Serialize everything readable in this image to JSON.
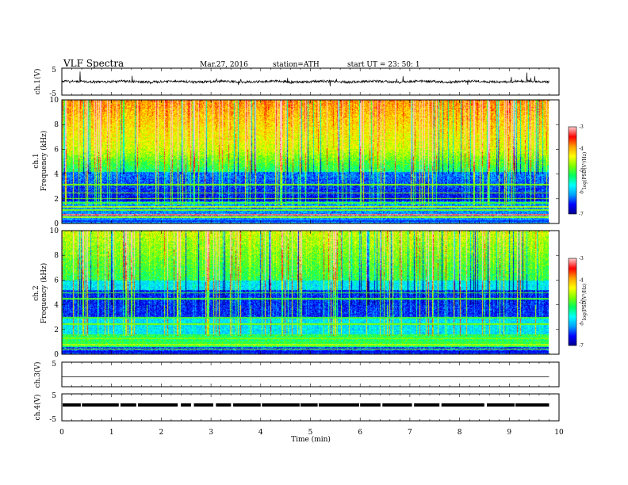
{
  "header": {
    "title": "VLF  Spectra",
    "date": "Mar.27, 2016",
    "station": "station=ATH",
    "start": "start  UT  =   23: 50: 1"
  },
  "chart_data": [
    {
      "type": "line",
      "panel": "ch1-waveform",
      "ylabel": "ch.1(V)",
      "ylim": [
        -5,
        5
      ],
      "yticks": [
        "5",
        "-5"
      ],
      "x_range_min": [
        0,
        9.8
      ],
      "trace_mean": 0,
      "trace_amplitude": 1
    },
    {
      "type": "heatmap",
      "panel": "ch1-spectrogram",
      "ylabel_channel": "ch.1",
      "ylabel": "Frequency  (kHz)",
      "ylim": [
        0,
        10
      ],
      "yticks": [
        "0",
        "2",
        "4",
        "6",
        "8",
        "10"
      ],
      "colorbar": {
        "label": "log(PSD(V²/Hz)",
        "range": [
          -7,
          -3
        ],
        "ticks": [
          "-3",
          "-4",
          "-5",
          "-6",
          "-7"
        ]
      }
    },
    {
      "type": "heatmap",
      "panel": "ch2-spectrogram",
      "ylabel_channel": "ch.2",
      "ylabel": "Frequency  (kHz)",
      "ylim": [
        0,
        10
      ],
      "yticks": [
        "0",
        "2",
        "4",
        "6",
        "8",
        "10"
      ],
      "colorbar": {
        "label": "log(PSD(V²/Hz)",
        "range": [
          -7,
          -3
        ],
        "ticks": [
          "-3",
          "-4",
          "-5",
          "-6",
          "-7"
        ]
      }
    },
    {
      "type": "line",
      "panel": "ch3-waveform",
      "ylabel": "ch.3(V)",
      "ylim": [
        -5,
        5
      ],
      "yticks": [
        "5"
      ],
      "trace_value": 0
    },
    {
      "type": "line",
      "panel": "ch4-waveform",
      "ylabel": "ch.4(V)",
      "ylim": [
        -5,
        5
      ],
      "yticks": [
        "5",
        "-5"
      ],
      "trace_value": 0
    }
  ],
  "xaxis": {
    "label": "Time  (min)",
    "ticks": [
      "0",
      "1",
      "2",
      "3",
      "4",
      "5",
      "6",
      "7",
      "8",
      "9",
      "10"
    ],
    "range": [
      0,
      10
    ]
  },
  "colors": {
    "colormap": [
      "#00008b",
      "#0000ff",
      "#00a0ff",
      "#00ffff",
      "#00ff60",
      "#80ff00",
      "#ffff00",
      "#ffa000",
      "#ff0000",
      "#ffc8c8"
    ]
  }
}
